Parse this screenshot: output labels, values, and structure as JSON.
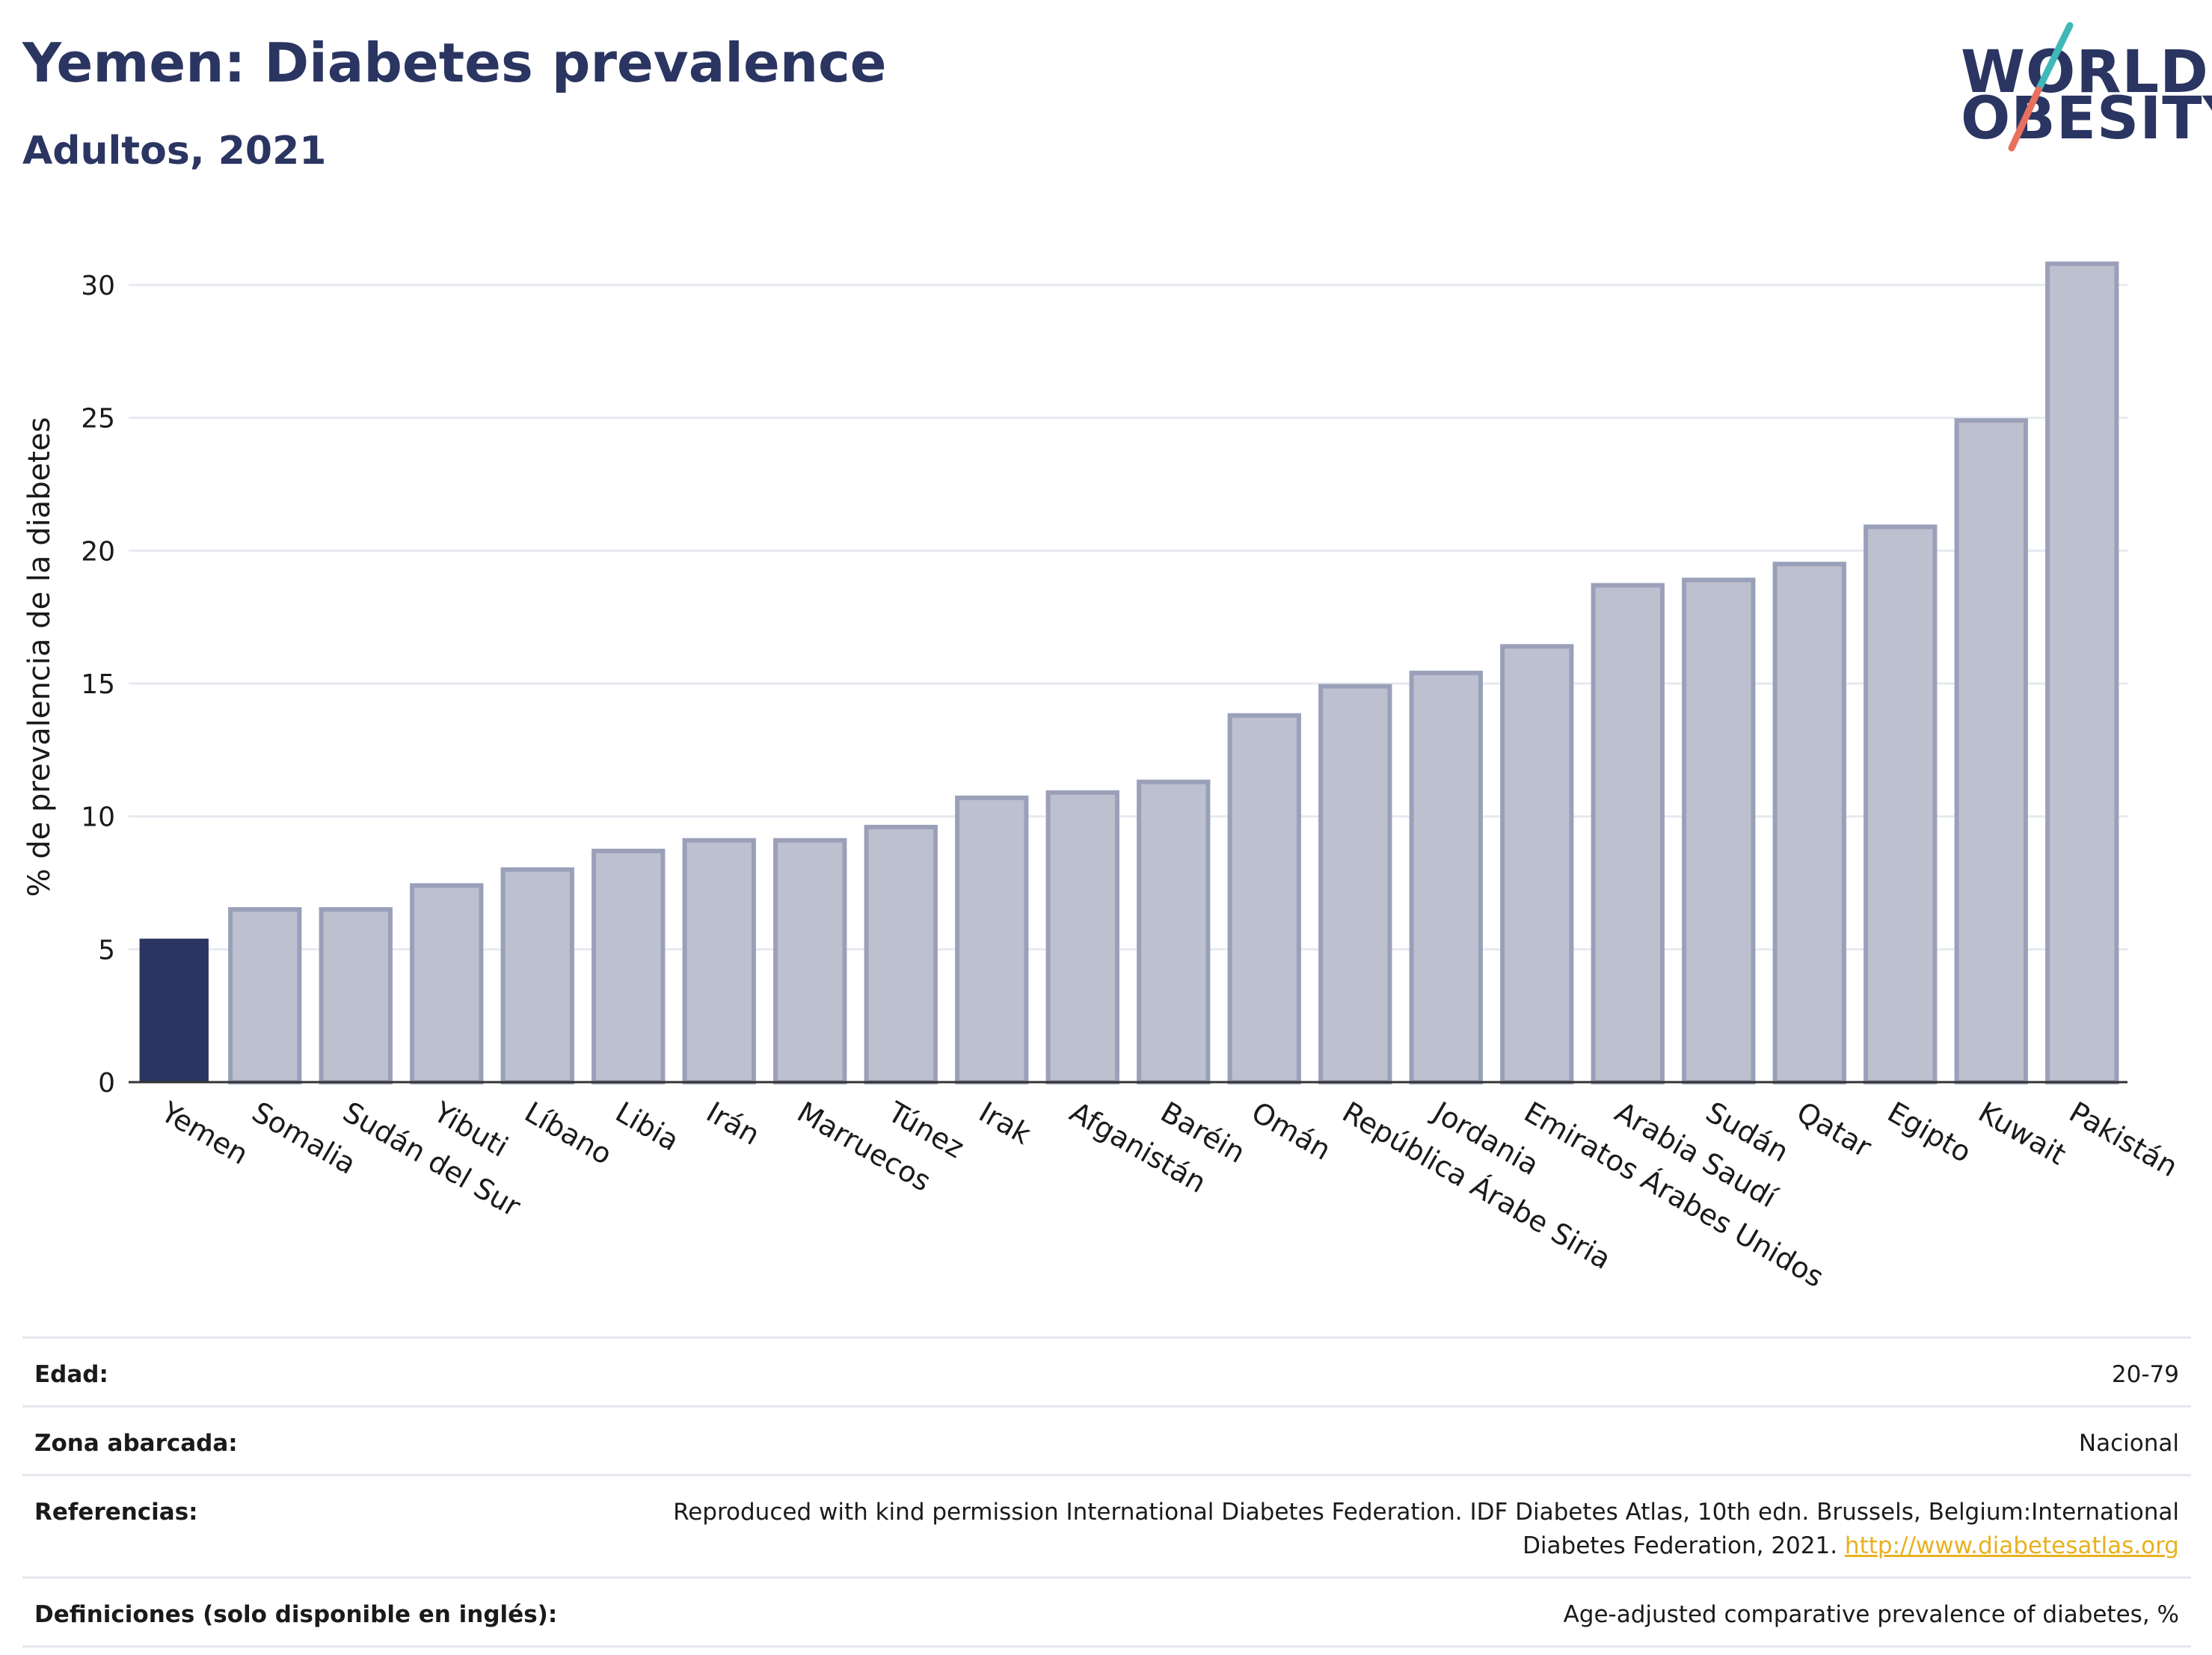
{
  "header": {
    "title": "Yemen: Diabetes prevalence",
    "subtitle": "Adultos, 2021",
    "logo_line1": "WORLD",
    "logo_line2": "OBESITY"
  },
  "colors": {
    "highlight": "#2b3561",
    "bar_fill": "#bcc0cf",
    "bar_stroke": "#9aa0b9",
    "grid": "#e6e9ef",
    "brand_navy": "#2b3561",
    "logo_teal": "#3fb8b8",
    "logo_coral": "#e8705f",
    "link": "#e8b11e"
  },
  "chart_data": {
    "type": "bar",
    "ylabel": "% de prevalencia de la diabetes",
    "ylim": [
      0,
      32
    ],
    "yticks": [
      0,
      5,
      10,
      15,
      20,
      25,
      30
    ],
    "grid": true,
    "highlight_category": "Yemen",
    "categories": [
      "Yemen",
      "Somalia",
      "Sudán del Sur",
      "Yibuti",
      "Líbano",
      "Libia",
      "Irán",
      "Marruecos",
      "Túnez",
      "Irak",
      "Afganistán",
      "Baréin",
      "Omán",
      "República Árabe Siria",
      "Jordania",
      "Emiratos Árabes Unidos",
      "Arabia Saudí",
      "Sudán",
      "Qatar",
      "Egipto",
      "Kuwait",
      "Pakistán"
    ],
    "values": [
      5.4,
      6.5,
      6.5,
      7.4,
      8.0,
      8.7,
      9.1,
      9.1,
      9.6,
      10.7,
      10.9,
      11.3,
      13.8,
      14.9,
      15.4,
      16.4,
      18.7,
      18.9,
      19.5,
      20.9,
      24.9,
      30.8
    ]
  },
  "footer": {
    "rows": [
      {
        "label": "Edad:",
        "value": "20-79"
      },
      {
        "label": "Zona abarcada:",
        "value": "Nacional"
      },
      {
        "label": "Referencias:",
        "value": "Reproduced with kind permission International Diabetes Federation.  IDF Diabetes Atlas, 10th edn. Brussels, Belgium:International Diabetes Federation, 2021. ",
        "link": "http://www.diabetesatlas.org"
      },
      {
        "label": "Definiciones (solo disponible en inglés):",
        "value": "Age-adjusted comparative prevalence of diabetes, %"
      }
    ]
  }
}
